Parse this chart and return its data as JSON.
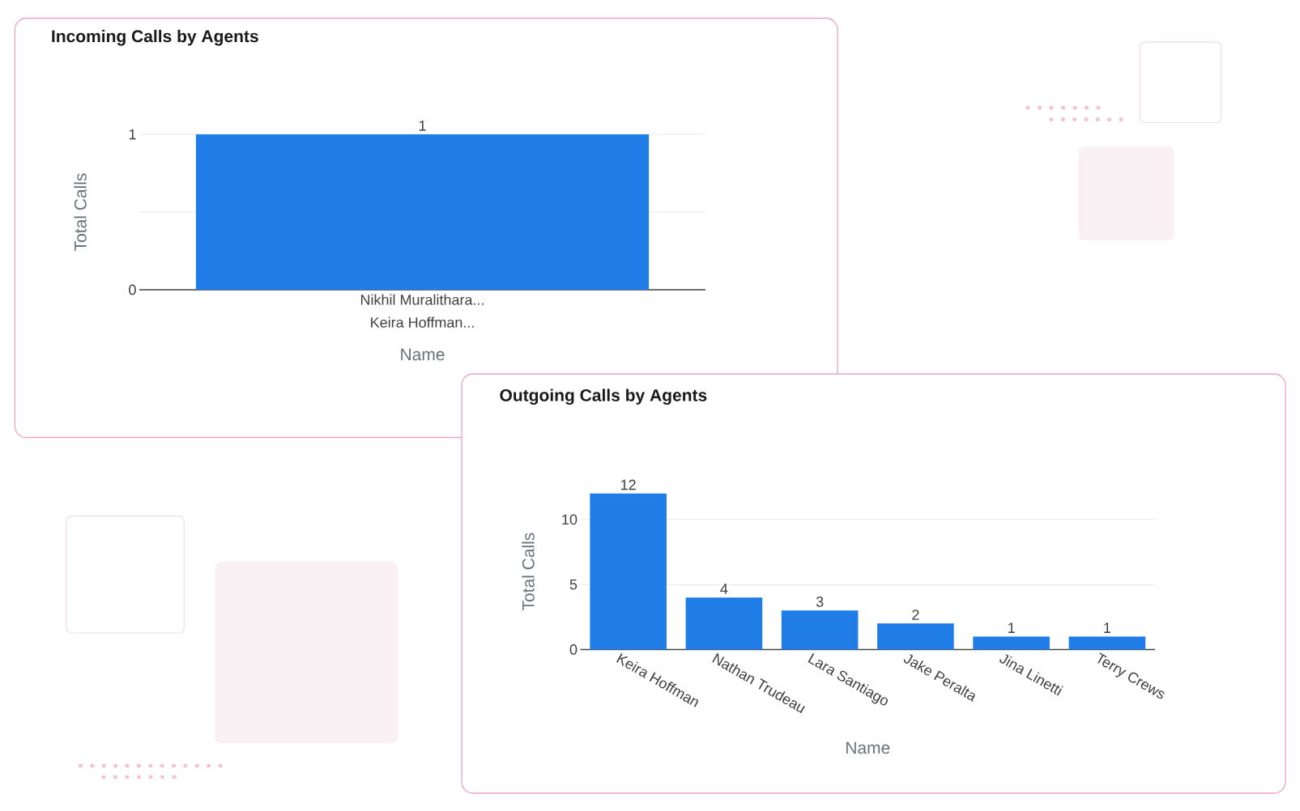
{
  "chart_data": [
    {
      "type": "bar",
      "title": "Incoming Calls by Agents",
      "xlabel": "Name",
      "ylabel": "Total Calls",
      "categories": [
        "Nikhil Muralithara..."
      ],
      "values": [
        1
      ],
      "color": "#207de8",
      "ylim": [
        0,
        1
      ],
      "yticks": [
        0,
        {
          "value": 0.5,
          "label": null
        },
        1
      ],
      "grid": "y",
      "data_labels": true,
      "annotations": [
        "Keira Hoffman..."
      ]
    },
    {
      "type": "bar",
      "title": "Outgoing Calls by Agents",
      "xlabel": "Name",
      "ylabel": "Total Calls",
      "categories": [
        "Keira Hoffman",
        "Nathan Trudeau",
        "Lara Santiago",
        "Jake Peralta",
        "Jina Linetti",
        "Terry Crews"
      ],
      "values": [
        12,
        4,
        3,
        2,
        1,
        1
      ],
      "color": "#207de8",
      "ylim": [
        0,
        12
      ],
      "yticks": [
        0,
        5,
        10
      ],
      "grid": "y",
      "data_labels": true
    }
  ]
}
